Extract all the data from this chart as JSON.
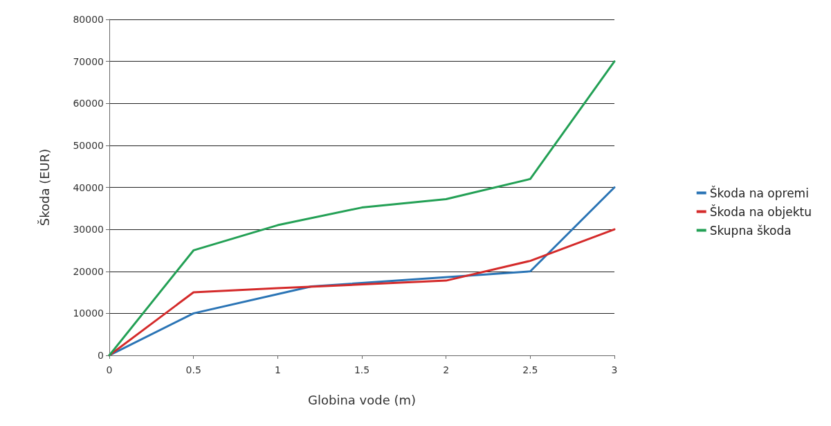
{
  "chart_data": {
    "type": "line",
    "xlabel": "Globina vode (m)",
    "ylabel": "Škoda (EUR)",
    "xlim": [
      0,
      3
    ],
    "xticks": [
      0,
      0.5,
      1,
      1.5,
      2,
      2.5,
      3
    ],
    "ylim": [
      0,
      80000
    ],
    "yticks": [
      0,
      10000,
      20000,
      30000,
      40000,
      50000,
      60000,
      70000,
      80000
    ],
    "grid": "y",
    "legend": "right",
    "marker": "none",
    "line_style": "solid",
    "series": [
      {
        "name": "Škoda na opremi",
        "color": "#2a74b5",
        "x": [
          0,
          0.5,
          1.2,
          2.5,
          3
        ],
        "values": [
          0,
          10000,
          16400,
          20000,
          40000
        ]
      },
      {
        "name": "Škoda na objektu",
        "color": "#d42a2a",
        "x": [
          0,
          0.5,
          1,
          2,
          2.5,
          3
        ],
        "values": [
          0,
          15000,
          16000,
          17800,
          22500,
          30000
        ]
      },
      {
        "name": "Skupna škoda",
        "color": "#23a055",
        "x": [
          0,
          0.5,
          1,
          1.5,
          2,
          2.5,
          3
        ],
        "values": [
          0,
          25000,
          31000,
          35200,
          37200,
          42000,
          70000
        ]
      }
    ]
  }
}
